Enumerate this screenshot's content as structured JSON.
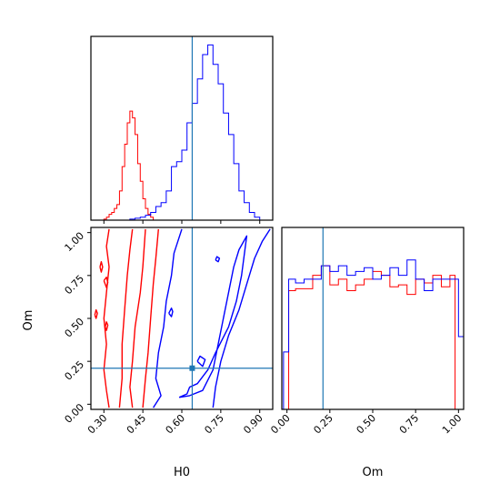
{
  "chart_data": [
    {
      "panel": "H0 marginal",
      "type": "histogram",
      "xlim": [
        0.25,
        0.95
      ],
      "truth": 0.64,
      "series": [
        {
          "color": "#ff0000",
          "bins": [
            [
              0.3,
              0.31,
              1
            ],
            [
              0.31,
              0.32,
              3
            ],
            [
              0.32,
              0.33,
              6
            ],
            [
              0.33,
              0.34,
              8
            ],
            [
              0.34,
              0.35,
              12
            ],
            [
              0.35,
              0.36,
              16
            ],
            [
              0.36,
              0.37,
              30
            ],
            [
              0.37,
              0.38,
              55
            ],
            [
              0.38,
              0.39,
              78
            ],
            [
              0.39,
              0.4,
              100
            ],
            [
              0.4,
              0.41,
              112
            ],
            [
              0.41,
              0.42,
              105
            ],
            [
              0.42,
              0.43,
              88
            ],
            [
              0.43,
              0.44,
              58
            ],
            [
              0.44,
              0.45,
              40
            ],
            [
              0.45,
              0.46,
              22
            ],
            [
              0.46,
              0.47,
              12
            ],
            [
              0.47,
              0.48,
              6
            ],
            [
              0.48,
              0.49,
              3
            ]
          ]
        },
        {
          "color": "#0000ff",
          "bins": [
            [
              0.4,
              0.42,
              1
            ],
            [
              0.42,
              0.44,
              2
            ],
            [
              0.44,
              0.46,
              3
            ],
            [
              0.46,
              0.48,
              5
            ],
            [
              0.48,
              0.5,
              8
            ],
            [
              0.5,
              0.52,
              14
            ],
            [
              0.52,
              0.54,
              18
            ],
            [
              0.54,
              0.56,
              30
            ],
            [
              0.56,
              0.58,
              55
            ],
            [
              0.58,
              0.6,
              60
            ],
            [
              0.6,
              0.62,
              72
            ],
            [
              0.62,
              0.64,
              100
            ],
            [
              0.64,
              0.66,
              120
            ],
            [
              0.66,
              0.68,
              145
            ],
            [
              0.68,
              0.7,
              170
            ],
            [
              0.7,
              0.72,
              180
            ],
            [
              0.72,
              0.74,
              160
            ],
            [
              0.74,
              0.76,
              140
            ],
            [
              0.76,
              0.78,
              110
            ],
            [
              0.78,
              0.8,
              88
            ],
            [
              0.8,
              0.82,
              58
            ],
            [
              0.82,
              0.84,
              30
            ],
            [
              0.84,
              0.86,
              18
            ],
            [
              0.86,
              0.88,
              8
            ],
            [
              0.88,
              0.9,
              3
            ]
          ]
        }
      ]
    },
    {
      "panel": "H0 vs Om",
      "type": "contour",
      "xlabel": "H0",
      "ylabel": "Om",
      "xlim": [
        0.25,
        0.95
      ],
      "ylim": [
        -0.03,
        1.03
      ],
      "xticks": [
        "0.30",
        "0.45",
        "0.60",
        "0.75",
        "0.90"
      ],
      "yticks": [
        "0.00",
        "0.25",
        "0.50",
        "0.75",
        "1.00"
      ],
      "truth": {
        "x": 0.64,
        "y": 0.21
      },
      "series": [
        {
          "color": "#ff0000",
          "contours": [
            [
              [
                0.32,
                -0.02
              ],
              [
                0.31,
                0.08
              ],
              [
                0.3,
                0.2
              ],
              [
                0.31,
                0.35
              ],
              [
                0.3,
                0.5
              ],
              [
                0.31,
                0.65
              ],
              [
                0.32,
                0.8
              ],
              [
                0.31,
                0.92
              ],
              [
                0.32,
                1.02
              ]
            ],
            [
              [
                0.36,
                -0.02
              ],
              [
                0.37,
                0.15
              ],
              [
                0.37,
                0.35
              ],
              [
                0.38,
                0.55
              ],
              [
                0.39,
                0.75
              ],
              [
                0.4,
                0.9
              ],
              [
                0.41,
                1.02
              ]
            ],
            [
              [
                0.41,
                -0.02
              ],
              [
                0.4,
                0.1
              ],
              [
                0.41,
                0.25
              ],
              [
                0.42,
                0.45
              ],
              [
                0.44,
                0.65
              ],
              [
                0.45,
                0.8
              ],
              [
                0.46,
                1.02
              ]
            ],
            [
              [
                0.45,
                -0.02
              ],
              [
                0.46,
                0.15
              ],
              [
                0.47,
                0.3
              ],
              [
                0.48,
                0.5
              ],
              [
                0.49,
                0.7
              ],
              [
                0.5,
                0.85
              ],
              [
                0.51,
                1.02
              ]
            ],
            [
              [
                0.265,
                0.52
              ],
              [
                0.27,
                0.5
              ],
              [
                0.275,
                0.53
              ],
              [
                0.27,
                0.55
              ],
              [
                0.265,
                0.52
              ]
            ],
            [
              [
                0.3,
                0.72
              ],
              [
                0.31,
                0.68
              ],
              [
                0.315,
                0.71
              ],
              [
                0.31,
                0.74
              ],
              [
                0.3,
                0.72
              ]
            ],
            [
              [
                0.285,
                0.8
              ],
              [
                0.29,
                0.77
              ],
              [
                0.295,
                0.8
              ],
              [
                0.29,
                0.83
              ],
              [
                0.285,
                0.8
              ]
            ],
            [
              [
                0.305,
                0.45
              ],
              [
                0.31,
                0.43
              ],
              [
                0.315,
                0.46
              ],
              [
                0.31,
                0.48
              ],
              [
                0.305,
                0.45
              ]
            ]
          ]
        },
        {
          "color": "#0000ff",
          "contours": [
            [
              [
                0.49,
                -0.02
              ],
              [
                0.52,
                0.05
              ],
              [
                0.5,
                0.15
              ],
              [
                0.51,
                0.3
              ],
              [
                0.53,
                0.45
              ],
              [
                0.54,
                0.6
              ],
              [
                0.56,
                0.75
              ],
              [
                0.57,
                0.88
              ],
              [
                0.6,
                1.02
              ]
            ],
            [
              [
                0.59,
                0.04
              ],
              [
                0.63,
                0.05
              ],
              [
                0.68,
                0.08
              ],
              [
                0.72,
                0.2
              ],
              [
                0.74,
                0.35
              ],
              [
                0.76,
                0.5
              ],
              [
                0.78,
                0.65
              ],
              [
                0.8,
                0.8
              ],
              [
                0.82,
                0.9
              ],
              [
                0.85,
                0.98
              ],
              [
                0.83,
                0.75
              ],
              [
                0.81,
                0.6
              ],
              [
                0.78,
                0.45
              ],
              [
                0.73,
                0.3
              ],
              [
                0.7,
                0.2
              ],
              [
                0.66,
                0.12
              ],
              [
                0.63,
                0.1
              ],
              [
                0.62,
                0.06
              ],
              [
                0.59,
                0.04
              ]
            ],
            [
              [
                0.72,
                -0.02
              ],
              [
                0.73,
                0.1
              ],
              [
                0.75,
                0.25
              ],
              [
                0.78,
                0.4
              ],
              [
                0.82,
                0.55
              ],
              [
                0.85,
                0.7
              ],
              [
                0.88,
                0.85
              ],
              [
                0.91,
                0.95
              ],
              [
                0.94,
                1.02
              ]
            ],
            [
              [
                0.55,
                0.53
              ],
              [
                0.56,
                0.51
              ],
              [
                0.565,
                0.54
              ],
              [
                0.56,
                0.56
              ],
              [
                0.55,
                0.53
              ]
            ],
            [
              [
                0.66,
                0.25
              ],
              [
                0.68,
                0.22
              ],
              [
                0.69,
                0.26
              ],
              [
                0.67,
                0.28
              ],
              [
                0.66,
                0.25
              ]
            ],
            [
              [
                0.73,
                0.84
              ],
              [
                0.74,
                0.83
              ],
              [
                0.745,
                0.85
              ],
              [
                0.735,
                0.86
              ],
              [
                0.73,
                0.84
              ]
            ]
          ]
        }
      ]
    },
    {
      "panel": "Om marginal",
      "type": "histogram",
      "xlabel": "Om",
      "xlim": [
        -0.03,
        1.03
      ],
      "xticks": [
        "0.00",
        "0.25",
        "0.50",
        "0.75",
        "1.00"
      ],
      "truth": 0.21,
      "series": [
        {
          "color": "#ff0000",
          "bins": [
            [
              0.0,
              0.01,
              0
            ],
            [
              0.01,
              0.05,
              62
            ],
            [
              0.05,
              0.15,
              63
            ],
            [
              0.15,
              0.2,
              70
            ],
            [
              0.2,
              0.25,
              75
            ],
            [
              0.25,
              0.3,
              65
            ],
            [
              0.3,
              0.35,
              68
            ],
            [
              0.35,
              0.4,
              62
            ],
            [
              0.4,
              0.45,
              65
            ],
            [
              0.45,
              0.5,
              68
            ],
            [
              0.5,
              0.55,
              72
            ],
            [
              0.55,
              0.6,
              70
            ],
            [
              0.6,
              0.65,
              64
            ],
            [
              0.65,
              0.7,
              65
            ],
            [
              0.7,
              0.75,
              60
            ],
            [
              0.75,
              0.8,
              68
            ],
            [
              0.8,
              0.85,
              66
            ],
            [
              0.85,
              0.9,
              70
            ],
            [
              0.9,
              0.95,
              64
            ],
            [
              0.95,
              0.98,
              70
            ],
            [
              0.98,
              1.0,
              0
            ]
          ]
        },
        {
          "color": "#0000ff",
          "bins": [
            [
              -0.02,
              0.01,
              30
            ],
            [
              0.01,
              0.05,
              68
            ],
            [
              0.05,
              0.1,
              66
            ],
            [
              0.1,
              0.15,
              68
            ],
            [
              0.15,
              0.2,
              68
            ],
            [
              0.2,
              0.25,
              75
            ],
            [
              0.25,
              0.3,
              72
            ],
            [
              0.3,
              0.35,
              75
            ],
            [
              0.35,
              0.4,
              70
            ],
            [
              0.4,
              0.45,
              72
            ],
            [
              0.45,
              0.5,
              74
            ],
            [
              0.5,
              0.55,
              68
            ],
            [
              0.55,
              0.6,
              70
            ],
            [
              0.6,
              0.65,
              74
            ],
            [
              0.65,
              0.7,
              70
            ],
            [
              0.7,
              0.75,
              78
            ],
            [
              0.75,
              0.8,
              68
            ],
            [
              0.8,
              0.85,
              62
            ],
            [
              0.85,
              0.9,
              68
            ],
            [
              0.9,
              0.95,
              68
            ],
            [
              0.95,
              1.0,
              68
            ],
            [
              1.0,
              1.03,
              38
            ]
          ]
        }
      ]
    }
  ]
}
